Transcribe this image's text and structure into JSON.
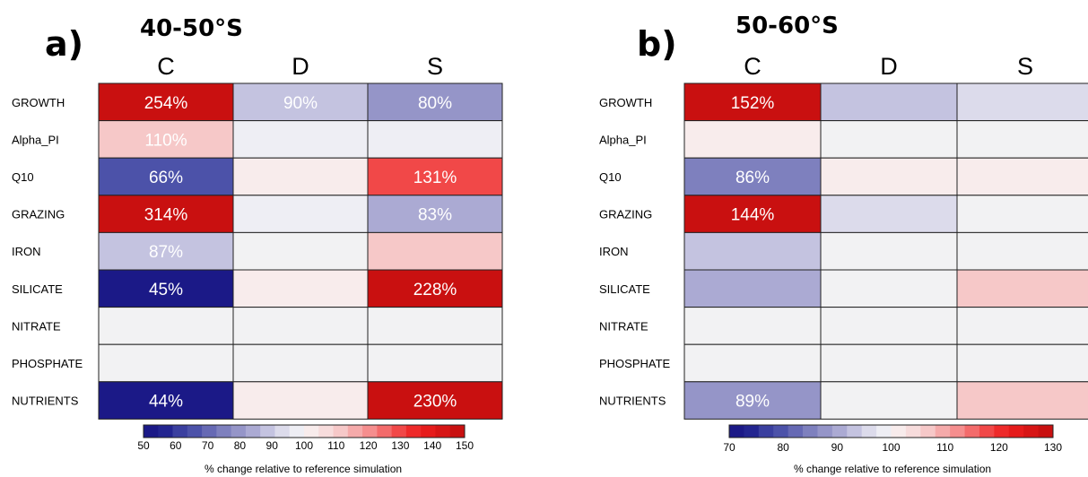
{
  "chart_data": [
    {
      "type": "heatmap",
      "panel_label": "a)",
      "title": "40-50°S",
      "columns": [
        "C",
        "D",
        "S"
      ],
      "rows": [
        "GROWTH",
        "Alpha_PI",
        "Q10",
        "GRAZING",
        "IRON",
        "SILICATE",
        "NITRATE",
        "PHOSPHATE",
        "NUTRIENTS"
      ],
      "values": [
        [
          254,
          90,
          80
        ],
        [
          110,
          99,
          96
        ],
        [
          66,
          102,
          131
        ],
        [
          314,
          96,
          83
        ],
        [
          87,
          100,
          110
        ],
        [
          45,
          102,
          228
        ],
        [
          100,
          100,
          100
        ],
        [
          100,
          100,
          100
        ],
        [
          44,
          102,
          230
        ]
      ],
      "cell_labels": [
        [
          "254%",
          "90%",
          "80%"
        ],
        [
          "110%",
          "",
          ""
        ],
        [
          "66%",
          "",
          "131%"
        ],
        [
          "314%",
          "",
          "83%"
        ],
        [
          "87%",
          "",
          ""
        ],
        [
          "45%",
          "",
          "228%"
        ],
        [
          "",
          "",
          ""
        ],
        [
          "",
          "",
          ""
        ],
        [
          "44%",
          "",
          "230%"
        ]
      ],
      "colorbar": {
        "min": 50,
        "max": 150,
        "ticks": [
          50,
          60,
          70,
          80,
          90,
          100,
          110,
          120,
          130,
          140,
          150
        ],
        "label": "% change relative to reference simulation"
      }
    },
    {
      "type": "heatmap",
      "panel_label": "b)",
      "title": "50-60°S",
      "columns": [
        "C",
        "D",
        "S"
      ],
      "rows": [
        "GROWTH",
        "Alpha_PI",
        "Q10",
        "GRAZING",
        "IRON",
        "SILICATE",
        "NITRATE",
        "PHOSPHATE",
        "NUTRIENTS"
      ],
      "values": [
        [
          152,
          92,
          97
        ],
        [
          102,
          100,
          100
        ],
        [
          86,
          101,
          102
        ],
        [
          144,
          96,
          100
        ],
        [
          93,
          100,
          100
        ],
        [
          90,
          100,
          107
        ],
        [
          100,
          100,
          100
        ],
        [
          100,
          100,
          100
        ],
        [
          89,
          100,
          107
        ]
      ],
      "cell_labels": [
        [
          "152%",
          "",
          ""
        ],
        [
          "",
          "",
          ""
        ],
        [
          "86%",
          "",
          ""
        ],
        [
          "144%",
          "",
          ""
        ],
        [
          "",
          "",
          ""
        ],
        [
          "",
          "",
          ""
        ],
        [
          "",
          "",
          ""
        ],
        [
          "",
          "",
          ""
        ],
        [
          "89%",
          "",
          ""
        ]
      ],
      "colorbar": {
        "min": 70,
        "max": 130,
        "ticks": [
          70,
          80,
          90,
          100,
          110,
          120,
          130
        ],
        "label": "% change relative to reference simulation"
      }
    }
  ]
}
